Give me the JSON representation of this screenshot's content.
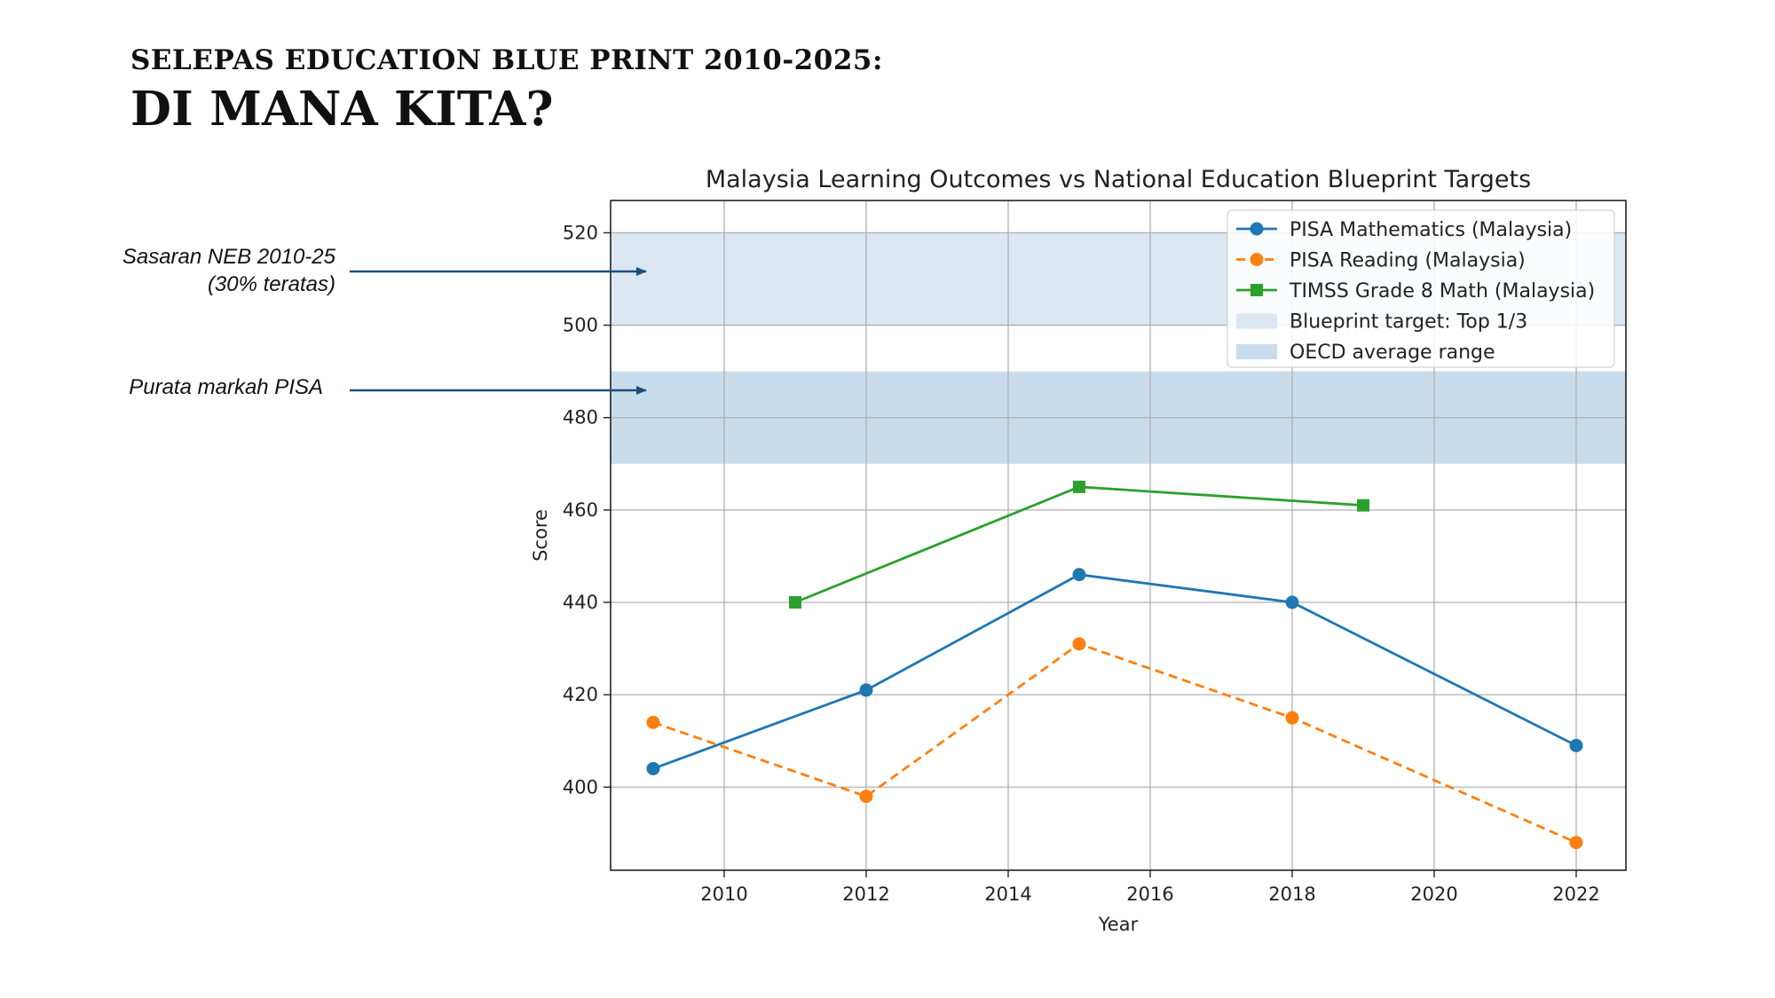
{
  "slide": {
    "subtitle": "SELEPAS EDUCATION BLUE PRINT 2010-2025:",
    "title": "DI MANA KITA?"
  },
  "annotations": {
    "target_line1": "Sasaran NEB 2010-25",
    "target_line2": "(30% teratas)",
    "avg": "Purata markah PISA",
    "arrow_color": "#1f4e79"
  },
  "chart_data": {
    "type": "line",
    "title": "Malaysia Learning Outcomes vs National Education Blueprint Targets",
    "xlabel": "Year",
    "ylabel": "Score",
    "xlim": [
      2008.4,
      2022.7
    ],
    "ylim": [
      382,
      527
    ],
    "xticks": [
      2010,
      2012,
      2014,
      2016,
      2018,
      2020,
      2022
    ],
    "yticks": [
      400,
      420,
      440,
      460,
      480,
      500,
      520
    ],
    "grid": true,
    "legend_position": "top-right",
    "series": [
      {
        "name": "PISA Mathematics (Malaysia)",
        "color": "#1f77b4",
        "style": "solid",
        "marker": "circle",
        "x": [
          2009,
          2012,
          2015,
          2018,
          2022
        ],
        "y": [
          404,
          421,
          446,
          440,
          409
        ]
      },
      {
        "name": "PISA Reading (Malaysia)",
        "color": "#ff7f0e",
        "style": "dashed",
        "marker": "circle",
        "x": [
          2009,
          2012,
          2015,
          2018,
          2022
        ],
        "y": [
          414,
          398,
          431,
          415,
          388
        ]
      },
      {
        "name": "TIMSS Grade 8 Math (Malaysia)",
        "color": "#2ca02c",
        "style": "solid",
        "marker": "square",
        "x": [
          2011,
          2015,
          2019
        ],
        "y": [
          440,
          465,
          461
        ]
      }
    ],
    "bands": [
      {
        "name": "OECD average range",
        "y0": 470,
        "y1": 490,
        "color": "#c9dcec"
      },
      {
        "name": "Blueprint target: Top 1/3",
        "y0": 500,
        "y1": 520,
        "color": "#dbe7f3"
      }
    ]
  }
}
